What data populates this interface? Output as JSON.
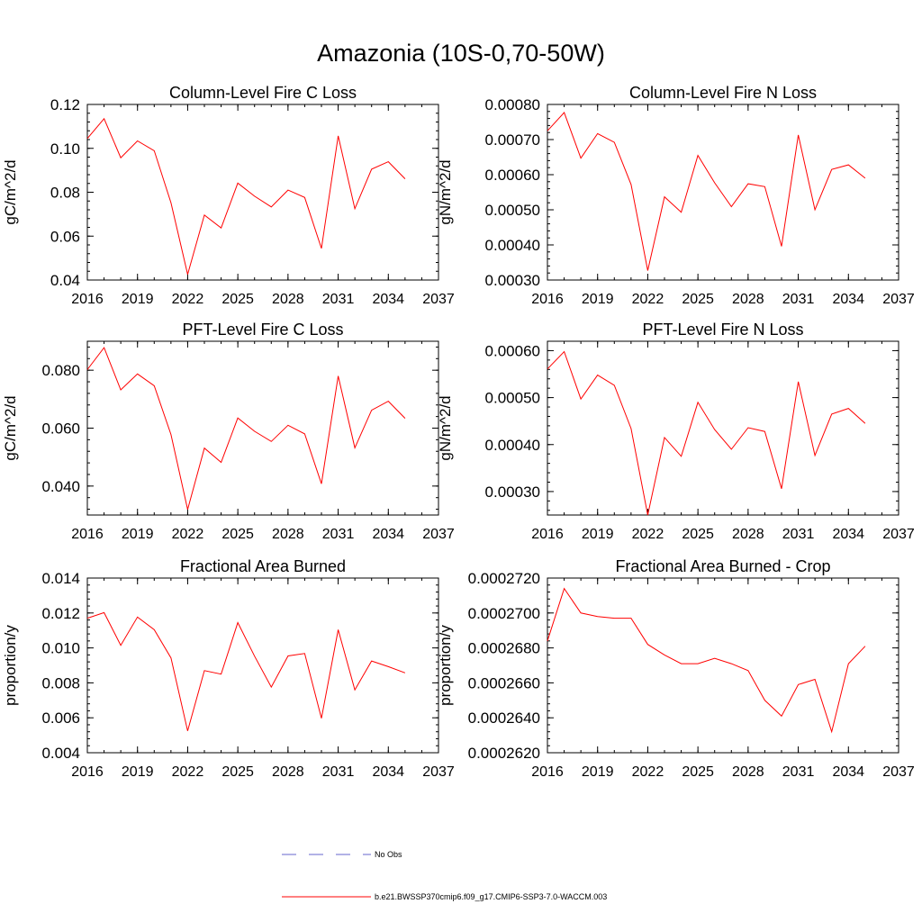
{
  "figure": {
    "title": "Amazonia (10S-0,70-50W)"
  },
  "chart_data": [
    {
      "type": "line",
      "title": "Column-Level Fire C Loss",
      "ylabel": "gC/m^2/d",
      "xlim": [
        2016,
        2037
      ],
      "ylim": [
        0.04,
        0.12
      ],
      "xticks": [
        "2016",
        "2019",
        "2022",
        "2025",
        "2028",
        "2031",
        "2034",
        "2037"
      ],
      "yticks": [
        "0.04",
        "0.06",
        "0.08",
        "0.10",
        "0.12"
      ],
      "x": [
        2016,
        2017,
        2018,
        2019,
        2020,
        2021,
        2022,
        2023,
        2024,
        2025,
        2026,
        2027,
        2028,
        2029,
        2030,
        2031,
        2032,
        2033,
        2034,
        2035
      ],
      "series": [
        {
          "color": "#ff0000",
          "values": [
            0.1045,
            0.1135,
            0.0957,
            0.1034,
            0.0989,
            0.0752,
            0.0426,
            0.0696,
            0.0637,
            0.0842,
            0.0782,
            0.0733,
            0.081,
            0.0776,
            0.0544,
            0.1057,
            0.0725,
            0.0905,
            0.0939,
            0.0861
          ]
        }
      ]
    },
    {
      "type": "line",
      "title": "Column-Level Fire N Loss",
      "ylabel": "gN/m^2/d",
      "xlim": [
        2016,
        2037
      ],
      "ylim": [
        0.0003,
        0.0008
      ],
      "xticks": [
        "2016",
        "2019",
        "2022",
        "2025",
        "2028",
        "2031",
        "2034",
        "2037"
      ],
      "yticks": [
        "0.00030",
        "0.00040",
        "0.00050",
        "0.00060",
        "0.00070",
        "0.00080"
      ],
      "x": [
        2016,
        2017,
        2018,
        2019,
        2020,
        2021,
        2022,
        2023,
        2024,
        2025,
        2026,
        2027,
        2028,
        2029,
        2030,
        2031,
        2032,
        2033,
        2034,
        2035
      ],
      "series": [
        {
          "color": "#ff0000",
          "values": [
            0.000725,
            0.000777,
            0.000647,
            0.000717,
            0.000692,
            0.000572,
            0.000327,
            0.000537,
            0.000493,
            0.000655,
            0.000577,
            0.000509,
            0.000574,
            0.000566,
            0.000396,
            0.000713,
            0.0005,
            0.000615,
            0.000628,
            0.00059
          ]
        }
      ]
    },
    {
      "type": "line",
      "title": "PFT-Level Fire C Loss",
      "ylabel": "gC/m^2/d",
      "xlim": [
        2016,
        2037
      ],
      "ylim": [
        0.03,
        0.09
      ],
      "xticks": [
        "2016",
        "2019",
        "2022",
        "2025",
        "2028",
        "2031",
        "2034",
        "2037"
      ],
      "yticks": [
        "0.040",
        "0.060",
        "0.080"
      ],
      "ytick_values": [
        0.04,
        0.06,
        0.08
      ],
      "x": [
        2016,
        2017,
        2018,
        2019,
        2020,
        2021,
        2022,
        2023,
        2024,
        2025,
        2026,
        2027,
        2028,
        2029,
        2030,
        2031,
        2032,
        2033,
        2034,
        2035
      ],
      "series": [
        {
          "color": "#ff0000",
          "values": [
            0.0802,
            0.0878,
            0.0732,
            0.0787,
            0.0746,
            0.0578,
            0.0319,
            0.0531,
            0.0482,
            0.0635,
            0.0589,
            0.0554,
            0.061,
            0.058,
            0.0408,
            0.078,
            0.0532,
            0.0662,
            0.0693,
            0.0634
          ]
        }
      ]
    },
    {
      "type": "line",
      "title": "PFT-Level Fire N Loss",
      "ylabel": "gN/m^2/d",
      "xlim": [
        2016,
        2037
      ],
      "ylim": [
        0.00025,
        0.00062
      ],
      "xticks": [
        "2016",
        "2019",
        "2022",
        "2025",
        "2028",
        "2031",
        "2034",
        "2037"
      ],
      "yticks": [
        "0.00030",
        "0.00040",
        "0.00050",
        "0.00060"
      ],
      "ytick_values": [
        0.0003,
        0.0004,
        0.0005,
        0.0006
      ],
      "x": [
        2016,
        2017,
        2018,
        2019,
        2020,
        2021,
        2022,
        2023,
        2024,
        2025,
        2026,
        2027,
        2028,
        2029,
        2030,
        2031,
        2032,
        2033,
        2034,
        2035
      ],
      "series": [
        {
          "color": "#ff0000",
          "values": [
            0.000561,
            0.000598,
            0.000497,
            0.000548,
            0.000526,
            0.000434,
            0.00025,
            0.000415,
            0.000375,
            0.00049,
            0.000432,
            0.00039,
            0.000436,
            0.000428,
            0.000306,
            0.000534,
            0.000377,
            0.000465,
            0.000477,
            0.000445
          ]
        }
      ]
    },
    {
      "type": "line",
      "title": "Fractional Area Burned",
      "ylabel": "proportion/y",
      "xlim": [
        2016,
        2037
      ],
      "ylim": [
        0.004,
        0.014
      ],
      "xticks": [
        "2016",
        "2019",
        "2022",
        "2025",
        "2028",
        "2031",
        "2034",
        "2037"
      ],
      "yticks": [
        "0.004",
        "0.006",
        "0.008",
        "0.010",
        "0.012",
        "0.014"
      ],
      "x": [
        2016,
        2017,
        2018,
        2019,
        2020,
        2021,
        2022,
        2023,
        2024,
        2025,
        2026,
        2027,
        2028,
        2029,
        2030,
        2031,
        2032,
        2033,
        2034,
        2035
      ],
      "series": [
        {
          "color": "#ff0000",
          "values": [
            0.0117,
            0.01202,
            0.01015,
            0.01177,
            0.01104,
            0.00943,
            0.00525,
            0.0087,
            0.0085,
            0.01145,
            0.00953,
            0.00776,
            0.00954,
            0.00968,
            0.00597,
            0.01104,
            0.0076,
            0.00925,
            0.00893,
            0.00857
          ]
        }
      ]
    },
    {
      "type": "line",
      "title": "Fractional Area Burned - Crop",
      "ylabel": "proportion/y",
      "xlim": [
        2016,
        2037
      ],
      "ylim": [
        0.000262,
        0.000272
      ],
      "xticks": [
        "2016",
        "2019",
        "2022",
        "2025",
        "2028",
        "2031",
        "2034",
        "2037"
      ],
      "yticks": [
        "0.0002620",
        "0.0002640",
        "0.0002660",
        "0.0002680",
        "0.0002700",
        "0.0002720"
      ],
      "x": [
        2016,
        2017,
        2018,
        2019,
        2020,
        2021,
        2022,
        2023,
        2024,
        2025,
        2026,
        2027,
        2028,
        2029,
        2030,
        2031,
        2032,
        2033,
        2034,
        2035
      ],
      "series": [
        {
          "color": "#ff0000",
          "values": [
            0.0002684,
            0.0002714,
            0.00027,
            0.0002698,
            0.0002697,
            0.0002697,
            0.0002682,
            0.0002676,
            0.0002671,
            0.0002671,
            0.0002674,
            0.0002671,
            0.0002667,
            0.000265,
            0.0002641,
            0.0002659,
            0.0002662,
            0.0002632,
            0.0002671,
            0.0002681
          ]
        }
      ]
    }
  ],
  "legend": {
    "items": [
      {
        "label": "No Obs",
        "color": "#6666cc",
        "dash": true
      },
      {
        "label": "b.e21.BWSSP370cmip6.f09_g17.CMIP6-SSP3-7.0-WACCM.003",
        "color": "#ff0000",
        "dash": false
      }
    ]
  }
}
